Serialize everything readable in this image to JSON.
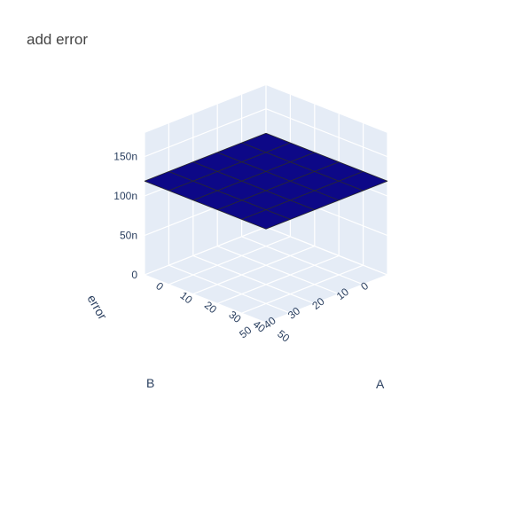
{
  "chart_data": {
    "type": "surface",
    "title": "add error",
    "axes": {
      "x": {
        "title": "A",
        "ticks": [
          "0",
          "10",
          "20",
          "30",
          "40",
          "50"
        ],
        "range": [
          0,
          50
        ]
      },
      "y": {
        "title": "B",
        "ticks": [
          "0",
          "10",
          "20",
          "30",
          "40",
          "50"
        ],
        "range": [
          0,
          50
        ]
      },
      "z": {
        "title": "error",
        "ticks": [
          "0",
          "50n",
          "100n",
          "150n"
        ],
        "range": [
          0,
          1.8e-07
        ]
      }
    },
    "grid": true,
    "surface": {
      "x": [
        0,
        10,
        20,
        30,
        40,
        50
      ],
      "y": [
        0,
        10,
        20,
        30,
        40,
        50
      ],
      "z_min": 1.18e-07,
      "z_max": 1.2e-07,
      "colorscale": [
        "#0d0887",
        "#7e03a8",
        "#cc4778",
        "#f89540",
        "#f0f921"
      ]
    }
  },
  "colors": {
    "pane": "#e5ecf6",
    "gridline": "#ffffff",
    "wireframe": "#2b2b2b"
  }
}
